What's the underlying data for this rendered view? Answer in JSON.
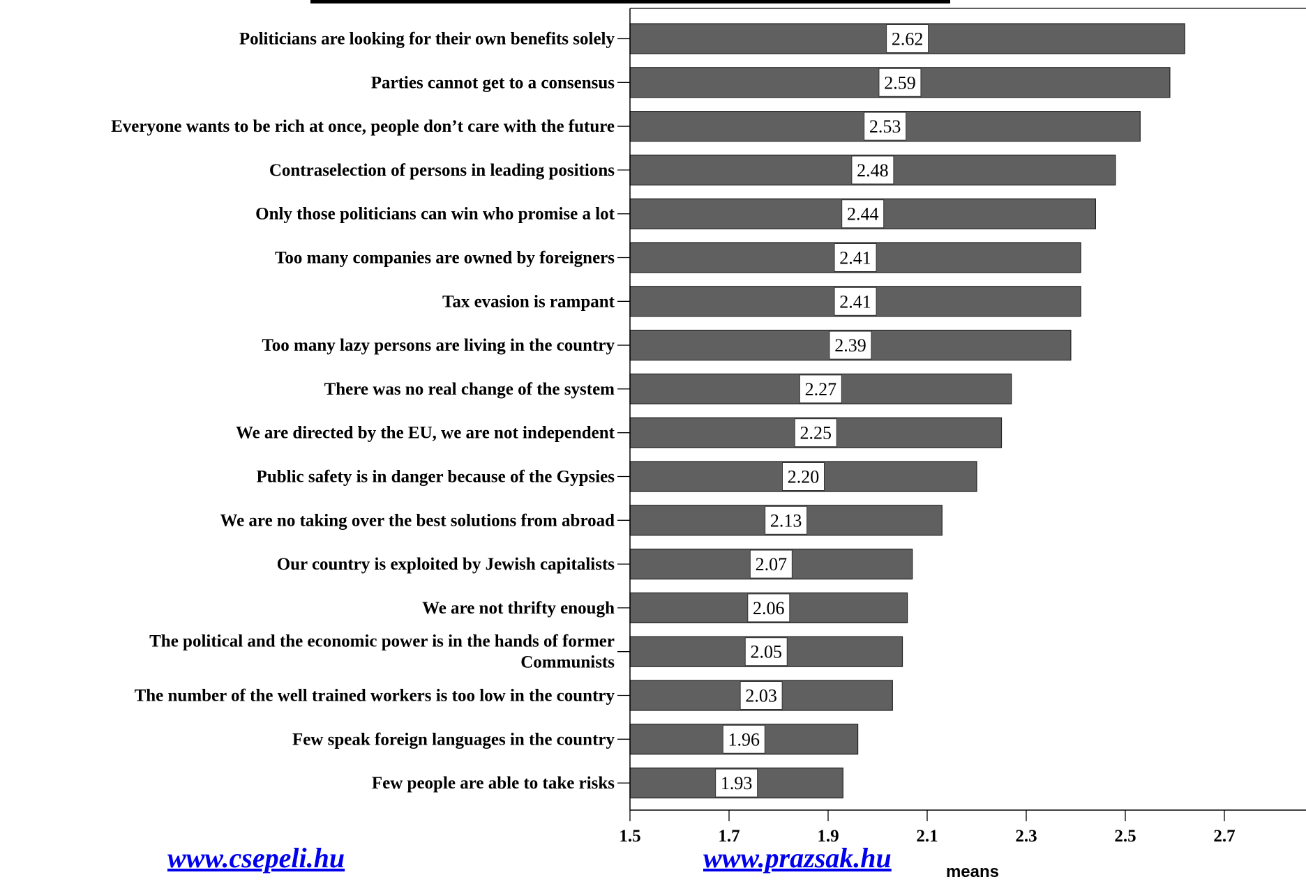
{
  "chart_data": {
    "type": "bar",
    "orientation": "horizontal",
    "categories": [
      "Politicians are looking for their own benefits solely",
      "Parties cannot get to a consensus",
      "Everyone wants to be rich at once, people don’t care with the future",
      "Contraselection of persons in leading positions",
      "Only those politicians can win who promise a lot",
      "Too many companies are owned by foreigners",
      "Tax evasion is rampant",
      "Too many lazy persons are living in the country",
      "There was no real change of the system",
      "We are directed by the EU, we are not independent",
      "Public safety is in danger because of the Gypsies",
      "We are no taking over the best solutions from abroad",
      "Our country is exploited by Jewish capitalists",
      "We are not  thrifty enough",
      "The political and the economic power is in the hands of former Communists",
      "The number of the well  trained workers is too low in the country",
      "Few speak foreign languages in the country",
      "Few people  are able to take  risks"
    ],
    "values": [
      2.62,
      2.59,
      2.53,
      2.48,
      2.44,
      2.41,
      2.41,
      2.39,
      2.27,
      2.25,
      2.2,
      2.13,
      2.07,
      2.06,
      2.05,
      2.03,
      1.96,
      1.93
    ],
    "value_labels": [
      "2.62",
      "2.59",
      "2.53",
      "2.48",
      "2.44",
      "2.41",
      "2.41",
      "2.39",
      "2.27",
      "2.25",
      "2.20",
      "2.13",
      "2.07",
      "2.06",
      "2.05",
      "2.03",
      "1.96",
      "1.93"
    ],
    "x_ticks": [
      "1.5",
      "1.7",
      "1.9",
      "2.1",
      "2.3",
      "2.5",
      "2.7"
    ],
    "xlim": [
      1.5,
      2.8
    ],
    "xlabel": "means",
    "ylabel": "",
    "title": "",
    "grid": false,
    "bar_color": "#606060"
  },
  "links": {
    "left": "www.csepeli.hu",
    "right": "www.prazsak.hu"
  }
}
